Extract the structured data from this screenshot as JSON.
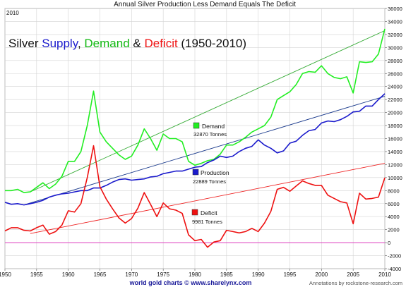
{
  "title": "Annual Silver Production Less Demand Equals The Deficit",
  "corner_year": "2010",
  "headline": {
    "part1": "Silver ",
    "part2": "Supply",
    "part3": ", ",
    "part4": "Demand",
    "part5": " & ",
    "part6": "Deficit",
    "part7": " (1950-2010)"
  },
  "footer": {
    "source": "world gold charts © www.sharelynx.com",
    "annotations": "Annotations by rockstone-research.com"
  },
  "legend": {
    "demand_name": "Demand",
    "demand_value": "32870  Tonnes",
    "production_name": "Production",
    "production_value": "22889  Tonnes",
    "deficit_name": "Deficit",
    "deficit_value": "9981  Tonnes"
  },
  "colors": {
    "demand": "#22ee22",
    "production": "#1a1acc",
    "deficit": "#ee1111",
    "trend_demand": "#33aa33",
    "trend_production": "#1a3a8c",
    "trend_deficit": "#ee2222",
    "zero_line": "#e040c0",
    "grid": "#d4d4d4"
  },
  "chart_data": {
    "type": "line",
    "x_range": [
      1950,
      2010
    ],
    "ylim": [
      -4000,
      36000
    ],
    "x_ticks": [
      1950,
      1955,
      1960,
      1965,
      1970,
      1975,
      1980,
      1985,
      1990,
      1995,
      2000,
      2005,
      2010
    ],
    "y_ticks": [
      -4000,
      -2000,
      0,
      2000,
      4000,
      6000,
      8000,
      10000,
      12000,
      14000,
      16000,
      18000,
      20000,
      22000,
      24000,
      26000,
      28000,
      30000,
      32000,
      34000,
      36000
    ],
    "grid": true,
    "x": [
      1950,
      1951,
      1952,
      1953,
      1954,
      1955,
      1956,
      1957,
      1958,
      1959,
      1960,
      1961,
      1962,
      1963,
      1964,
      1965,
      1966,
      1967,
      1968,
      1969,
      1970,
      1971,
      1972,
      1973,
      1974,
      1975,
      1976,
      1977,
      1978,
      1979,
      1980,
      1981,
      1982,
      1983,
      1984,
      1985,
      1986,
      1987,
      1988,
      1989,
      1990,
      1991,
      1992,
      1993,
      1994,
      1995,
      1996,
      1997,
      1998,
      1999,
      2000,
      2001,
      2002,
      2003,
      2004,
      2005,
      2006,
      2007,
      2008,
      2009,
      2010
    ],
    "series": [
      {
        "name": "Demand",
        "values": [
          8000,
          8000,
          8200,
          7700,
          7800,
          8500,
          9200,
          8300,
          9000,
          10200,
          12500,
          12500,
          14000,
          18000,
          23300,
          17000,
          15500,
          14500,
          13500,
          12800,
          13300,
          15000,
          17500,
          16000,
          14200,
          16700,
          16000,
          16000,
          15500,
          12500,
          11900,
          12200,
          12600,
          12800,
          13600,
          15000,
          15000,
          15500,
          16200,
          17000,
          17500,
          18000,
          19300,
          22000,
          22600,
          23200,
          24300,
          26000,
          26300,
          26200,
          27200,
          26000,
          25400,
          25200,
          25500,
          23000,
          27800,
          27700,
          27800,
          29000,
          32870
        ]
      },
      {
        "name": "Production",
        "values": [
          6200,
          5900,
          6000,
          5800,
          6000,
          6200,
          6500,
          7000,
          7300,
          7500,
          7600,
          7800,
          8000,
          8000,
          8400,
          8400,
          8800,
          9300,
          9700,
          9800,
          9600,
          9700,
          9800,
          10100,
          10200,
          10600,
          10800,
          11000,
          11000,
          11300,
          11600,
          11700,
          12300,
          12700,
          13300,
          13100,
          13300,
          14000,
          14500,
          14800,
          15800,
          15000,
          14500,
          13800,
          14100,
          15300,
          15600,
          16500,
          17200,
          17400,
          18400,
          18700,
          18600,
          18900,
          19400,
          20100,
          20200,
          21000,
          21000,
          22000,
          22889
        ]
      },
      {
        "name": "Deficit",
        "values": [
          1800,
          2300,
          2300,
          1900,
          1800,
          2300,
          2700,
          1300,
          1700,
          2700,
          4900,
          4700,
          6000,
          10000,
          14900,
          8600,
          6700,
          5200,
          3800,
          3000,
          3700,
          5300,
          7700,
          5900,
          4000,
          6100,
          5200,
          5000,
          4500,
          1200,
          300,
          500,
          -700,
          100,
          300,
          1900,
          1700,
          1500,
          1700,
          2200,
          1700,
          3000,
          4800,
          8200,
          8500,
          7900,
          8700,
          9500,
          9100,
          8800,
          8800,
          7300,
          6800,
          6300,
          6100,
          2900,
          7600,
          6700,
          6800,
          7000,
          9981
        ]
      }
    ],
    "trendlines": [
      {
        "for": "Demand",
        "from": [
          1954,
          7800
        ],
        "to": [
          2010,
          32600
        ]
      },
      {
        "for": "Production",
        "from": [
          1953,
          5800
        ],
        "to": [
          2010,
          22500
        ]
      },
      {
        "for": "Deficit",
        "from": [
          1954,
          1400
        ],
        "to": [
          2010,
          12200
        ]
      }
    ],
    "zero_line": 0
  }
}
